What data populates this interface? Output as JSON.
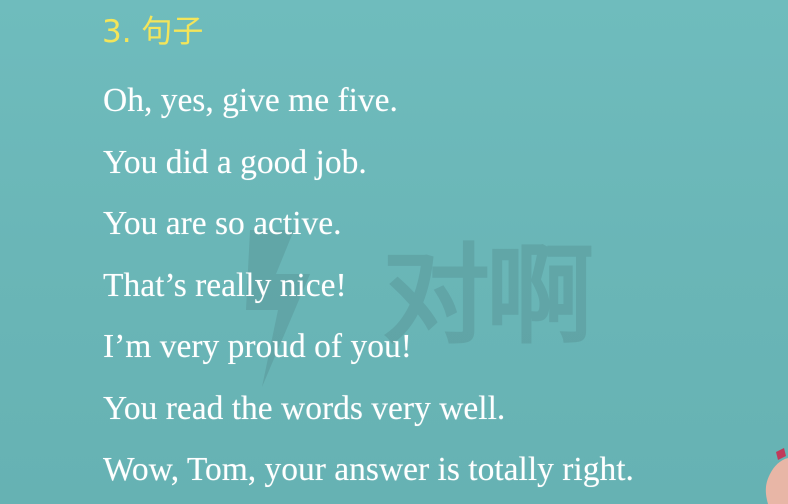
{
  "heading": "3. 句子",
  "watermark": "对啊",
  "sentences": [
    "Oh, yes, give me five.",
    "You did a good job.",
    "You are so active.",
    "That’s really nice!",
    "I’m very proud of you!",
    "You read the words very well.",
    "Wow, Tom, your answer is totally right."
  ],
  "colors": {
    "background": "#6bb8b9",
    "heading": "#f3e55a",
    "text": "#ffffff"
  }
}
